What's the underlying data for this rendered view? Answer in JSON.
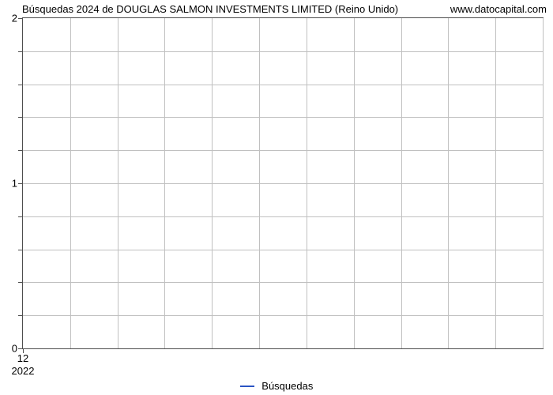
{
  "chart": {
    "type": "line",
    "title_left": "Búsquedas 2024 de DOUGLAS SALMON INVESTMENTS LIMITED (Reino Unido)",
    "title_right": "www.datocapital.com",
    "title_fontsize": 13,
    "plot_border_color": "#4e4e4e",
    "grid_color": "#c0c0c0",
    "background_color": "#ffffff",
    "y_axis": {
      "limits": [
        0,
        2
      ],
      "major_ticks": [
        0,
        1,
        2
      ],
      "minor_ticks": [
        0.2,
        0.4,
        0.6,
        0.8,
        1.2,
        1.4,
        1.6,
        1.8
      ]
    },
    "x_axis": {
      "month_positions": [
        0,
        1,
        2,
        3,
        4,
        5,
        6,
        7,
        8,
        9,
        10,
        11
      ],
      "month_labels": [
        "12"
      ],
      "month_label_positions": [
        0
      ],
      "year_labels": [
        "2022"
      ],
      "year_label_positions": [
        0
      ]
    },
    "legend": {
      "label": "Búsquedas",
      "color": "#2a54c4"
    },
    "series": {
      "color": "#2a54c4",
      "values": []
    }
  }
}
